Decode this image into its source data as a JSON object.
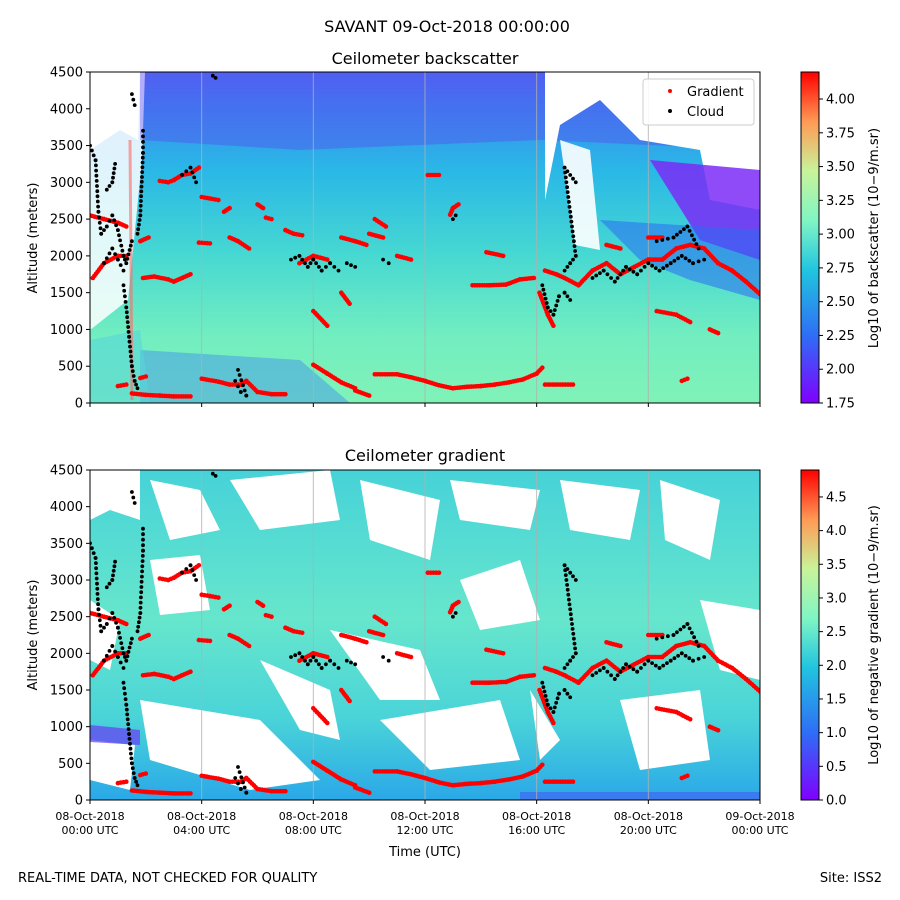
{
  "figure": {
    "suptitle": "SAVANT 09-Oct-2018 00:00:00",
    "footer_left": "REAL-TIME DATA, NOT CHECKED FOR QUALITY",
    "footer_right": "Site: ISS2"
  },
  "colors": {
    "colormap": "rainbow",
    "gradient_marker": "#ff0000",
    "cloud_marker": "#000000",
    "grid": "#b0b0b0"
  },
  "chart_data": [
    {
      "type": "heatmap",
      "title": "Ceilometer backscatter",
      "xlabel": "",
      "ylabel": "Altitude (meters)",
      "ylim": [
        0,
        4500
      ],
      "y_ticks": [
        0,
        500,
        1000,
        1500,
        2000,
        2500,
        3000,
        3500,
        4000,
        4500
      ],
      "xlim_hours": [
        0,
        24
      ],
      "x_ticks_hours": [
        0,
        4,
        8,
        12,
        16,
        20,
        24
      ],
      "x_tick_labels": [],
      "grid": "vertical",
      "colorbar": {
        "label": "Log10 of backscatter (10−9/m.sr)",
        "range": [
          1.75,
          4.2
        ],
        "ticks": [
          1.75,
          2.0,
          2.25,
          2.5,
          2.75,
          3.0,
          3.25,
          3.5,
          3.75,
          4.0
        ],
        "tick_labels": [
          "1.75",
          "2.00",
          "2.25",
          "2.50",
          "2.75",
          "3.00",
          "3.25",
          "3.50",
          "3.75",
          "4.00"
        ]
      },
      "legend": {
        "placement": "top-right",
        "entries": [
          "Gradient",
          "Cloud"
        ]
      }
    },
    {
      "type": "heatmap",
      "title": "Ceilometer gradient",
      "xlabel": "Time (UTC)",
      "ylabel": "Altitude (meters)",
      "ylim": [
        0,
        4500
      ],
      "y_ticks": [
        0,
        500,
        1000,
        1500,
        2000,
        2500,
        3000,
        3500,
        4000,
        4500
      ],
      "xlim_hours": [
        0,
        24
      ],
      "x_ticks_hours": [
        0,
        4,
        8,
        12,
        16,
        20,
        24
      ],
      "x_tick_labels": [
        [
          "08-Oct-2018",
          "00:00 UTC"
        ],
        [
          "08-Oct-2018",
          "04:00 UTC"
        ],
        [
          "08-Oct-2018",
          "08:00 UTC"
        ],
        [
          "08-Oct-2018",
          "12:00 UTC"
        ],
        [
          "08-Oct-2018",
          "16:00 UTC"
        ],
        [
          "08-Oct-2018",
          "20:00 UTC"
        ],
        [
          "09-Oct-2018",
          "00:00 UTC"
        ]
      ],
      "grid": "vertical",
      "colorbar": {
        "label": "Log10 of negative gradient (10−9/m.sr)",
        "range": [
          0,
          4.9
        ],
        "ticks": [
          0,
          0.5,
          1.0,
          1.5,
          2.0,
          2.5,
          3.0,
          3.5,
          4.0,
          4.5
        ],
        "tick_labels": [
          "0.0",
          "0.5",
          "1.0",
          "1.5",
          "2.0",
          "2.5",
          "3.0",
          "3.5",
          "4.0",
          "4.5"
        ]
      }
    }
  ],
  "gradient_layers": [
    [
      [
        0.1,
        1700
      ],
      [
        0.5,
        1900
      ],
      [
        1.0,
        2000
      ],
      [
        1.3,
        2000
      ]
    ],
    [
      [
        0.0,
        2550
      ],
      [
        0.5,
        2500
      ],
      [
        1.0,
        2450
      ],
      [
        1.3,
        2400
      ]
    ],
    [
      [
        1.0,
        230
      ],
      [
        1.3,
        250
      ]
    ],
    [
      [
        1.8,
        2200
      ],
      [
        2.1,
        2250
      ]
    ],
    [
      [
        1.9,
        1700
      ],
      [
        2.3,
        1720
      ],
      [
        2.8,
        1680
      ],
      [
        3.0,
        1650
      ],
      [
        3.3,
        1700
      ],
      [
        3.6,
        1750
      ]
    ],
    [
      [
        1.5,
        130
      ],
      [
        2.0,
        110
      ],
      [
        2.5,
        100
      ],
      [
        3.0,
        90
      ],
      [
        3.6,
        90
      ]
    ],
    [
      [
        1.8,
        340
      ],
      [
        2.0,
        360
      ]
    ],
    [
      [
        2.5,
        3020
      ],
      [
        2.8,
        3000
      ],
      [
        3.0,
        3030
      ],
      [
        3.3,
        3100
      ],
      [
        3.6,
        3120
      ],
      [
        3.9,
        3200
      ]
    ],
    [
      [
        3.9,
        2180
      ],
      [
        4.3,
        2170
      ]
    ],
    [
      [
        4.0,
        330
      ],
      [
        4.6,
        290
      ],
      [
        5.0,
        250
      ],
      [
        5.4,
        250
      ],
      [
        5.6,
        300
      ],
      [
        6.0,
        150
      ],
      [
        6.5,
        120
      ],
      [
        7.0,
        120
      ]
    ],
    [
      [
        4.0,
        2800
      ],
      [
        4.3,
        2780
      ],
      [
        4.6,
        2760
      ]
    ],
    [
      [
        5.0,
        2250
      ],
      [
        5.3,
        2200
      ],
      [
        5.7,
        2100
      ]
    ],
    [
      [
        4.8,
        2600
      ],
      [
        5.0,
        2650
      ]
    ],
    [
      [
        6.0,
        2700
      ],
      [
        6.2,
        2650
      ]
    ],
    [
      [
        6.3,
        2520
      ],
      [
        6.5,
        2500
      ]
    ],
    [
      [
        7.0,
        2350
      ],
      [
        7.3,
        2300
      ],
      [
        7.6,
        2280
      ]
    ],
    [
      [
        7.5,
        1900
      ],
      [
        8.0,
        2000
      ],
      [
        8.5,
        1950
      ]
    ],
    [
      [
        8.0,
        520
      ],
      [
        8.5,
        400
      ],
      [
        9.0,
        280
      ],
      [
        9.5,
        200
      ]
    ],
    [
      [
        8.0,
        1250
      ],
      [
        8.5,
        1050
      ]
    ],
    [
      [
        9.0,
        1500
      ],
      [
        9.3,
        1350
      ]
    ],
    [
      [
        9.0,
        2250
      ],
      [
        9.5,
        2200
      ],
      [
        9.9,
        2150
      ]
    ],
    [
      [
        9.5,
        170
      ],
      [
        10.0,
        100
      ]
    ],
    [
      [
        10.0,
        2300
      ],
      [
        10.5,
        2250
      ]
    ],
    [
      [
        10.2,
        2500
      ],
      [
        10.6,
        2400
      ]
    ],
    [
      [
        10.2,
        390
      ],
      [
        11.0,
        390
      ],
      [
        11.5,
        350
      ],
      [
        12.0,
        300
      ],
      [
        12.5,
        240
      ],
      [
        13.0,
        200
      ],
      [
        13.5,
        220
      ],
      [
        14.0,
        230
      ],
      [
        14.5,
        250
      ],
      [
        15.0,
        280
      ],
      [
        15.5,
        320
      ],
      [
        16.0,
        400
      ],
      [
        16.2,
        480
      ]
    ],
    [
      [
        11.0,
        2000
      ],
      [
        11.5,
        1950
      ]
    ],
    [
      [
        12.1,
        3100
      ],
      [
        12.5,
        3100
      ]
    ],
    [
      [
        12.9,
        2560
      ],
      [
        13.0,
        2650
      ],
      [
        13.2,
        2700
      ]
    ],
    [
      [
        13.7,
        1600
      ],
      [
        14.3,
        1600
      ],
      [
        14.9,
        1610
      ],
      [
        15.4,
        1680
      ],
      [
        15.9,
        1700
      ]
    ],
    [
      [
        14.2,
        2050
      ],
      [
        14.8,
        2000
      ]
    ],
    [
      [
        16.1,
        1500
      ],
      [
        16.4,
        1200
      ],
      [
        16.6,
        1050
      ]
    ],
    [
      [
        16.3,
        250
      ],
      [
        17.3,
        250
      ]
    ],
    [
      [
        16.3,
        1800
      ],
      [
        16.7,
        1750
      ],
      [
        17.0,
        1700
      ],
      [
        17.5,
        1600
      ],
      [
        18.0,
        1800
      ],
      [
        18.5,
        1900
      ],
      [
        19.0,
        1750
      ],
      [
        19.5,
        1850
      ],
      [
        20.0,
        1950
      ],
      [
        20.5,
        1950
      ],
      [
        21.0,
        2100
      ],
      [
        21.5,
        2150
      ],
      [
        22.0,
        2100
      ],
      [
        22.5,
        1900
      ],
      [
        23.0,
        1800
      ],
      [
        23.5,
        1650
      ],
      [
        24.0,
        1480
      ]
    ],
    [
      [
        18.5,
        2150
      ],
      [
        19.0,
        2100
      ]
    ],
    [
      [
        20.0,
        2250
      ],
      [
        20.5,
        2250
      ]
    ],
    [
      [
        20.3,
        1250
      ],
      [
        21.0,
        1200
      ],
      [
        21.5,
        1100
      ]
    ],
    [
      [
        21.2,
        300
      ],
      [
        21.4,
        330
      ]
    ],
    [
      [
        22.2,
        1000
      ],
      [
        22.5,
        950
      ]
    ]
  ],
  "cloud_layers": [
    [
      [
        0.0,
        3500
      ],
      [
        0.2,
        3300
      ],
      [
        0.3,
        2600
      ],
      [
        0.4,
        2300
      ],
      [
        0.6,
        2400
      ],
      [
        0.8,
        2550
      ],
      [
        1.0,
        2350
      ],
      [
        1.2,
        2000
      ],
      [
        1.3,
        1900
      ],
      [
        1.5,
        2200
      ]
    ],
    [
      [
        0.5,
        1900
      ],
      [
        0.8,
        2100
      ],
      [
        1.0,
        1950
      ],
      [
        1.2,
        1800
      ]
    ],
    [
      [
        0.6,
        2900
      ],
      [
        0.8,
        3000
      ],
      [
        0.9,
        3250
      ]
    ],
    [
      [
        1.2,
        1600
      ],
      [
        1.3,
        1300
      ],
      [
        1.4,
        900
      ],
      [
        1.5,
        500
      ],
      [
        1.6,
        300
      ],
      [
        1.7,
        200
      ]
    ],
    [
      [
        1.7,
        2300
      ],
      [
        1.8,
        2550
      ],
      [
        1.9,
        3400
      ],
      [
        1.9,
        3700
      ]
    ],
    [
      [
        1.5,
        4200
      ],
      [
        1.6,
        4050
      ]
    ],
    [
      [
        3.3,
        3100
      ],
      [
        3.6,
        3200
      ],
      [
        3.8,
        3000
      ]
    ],
    [
      [
        4.4,
        4450
      ],
      [
        4.5,
        4420
      ]
    ],
    [
      [
        5.2,
        300
      ],
      [
        5.4,
        150
      ],
      [
        5.6,
        100
      ],
      [
        5.3,
        450
      ]
    ],
    [
      [
        7.2,
        1950
      ],
      [
        7.5,
        2000
      ],
      [
        7.8,
        1850
      ],
      [
        8.0,
        1950
      ],
      [
        8.3,
        1800
      ],
      [
        8.6,
        1900
      ],
      [
        8.9,
        1800
      ]
    ],
    [
      [
        9.2,
        1900
      ],
      [
        9.5,
        1850
      ]
    ],
    [
      [
        10.5,
        1950
      ],
      [
        10.7,
        1900
      ]
    ],
    [
      [
        13.0,
        2500
      ],
      [
        13.1,
        2550
      ]
    ],
    [
      [
        16.2,
        1600
      ],
      [
        16.4,
        1300
      ],
      [
        16.6,
        1200
      ],
      [
        16.8,
        1450
      ],
      [
        17.0,
        1500
      ],
      [
        17.2,
        1400
      ]
    ],
    [
      [
        17.0,
        1800
      ],
      [
        17.2,
        1900
      ],
      [
        17.4,
        2000
      ],
      [
        17.0,
        3200
      ],
      [
        17.4,
        3000
      ]
    ],
    [
      [
        18.0,
        1700
      ],
      [
        18.4,
        1800
      ],
      [
        18.8,
        1650
      ],
      [
        19.2,
        1850
      ],
      [
        19.6,
        1750
      ],
      [
        20.0,
        1900
      ],
      [
        20.4,
        1800
      ],
      [
        20.8,
        1900
      ],
      [
        21.2,
        2000
      ],
      [
        21.6,
        1900
      ],
      [
        22.0,
        1950
      ]
    ],
    [
      [
        20.3,
        2200
      ],
      [
        20.9,
        2250
      ],
      [
        21.4,
        2400
      ],
      [
        21.8,
        2100
      ]
    ]
  ]
}
